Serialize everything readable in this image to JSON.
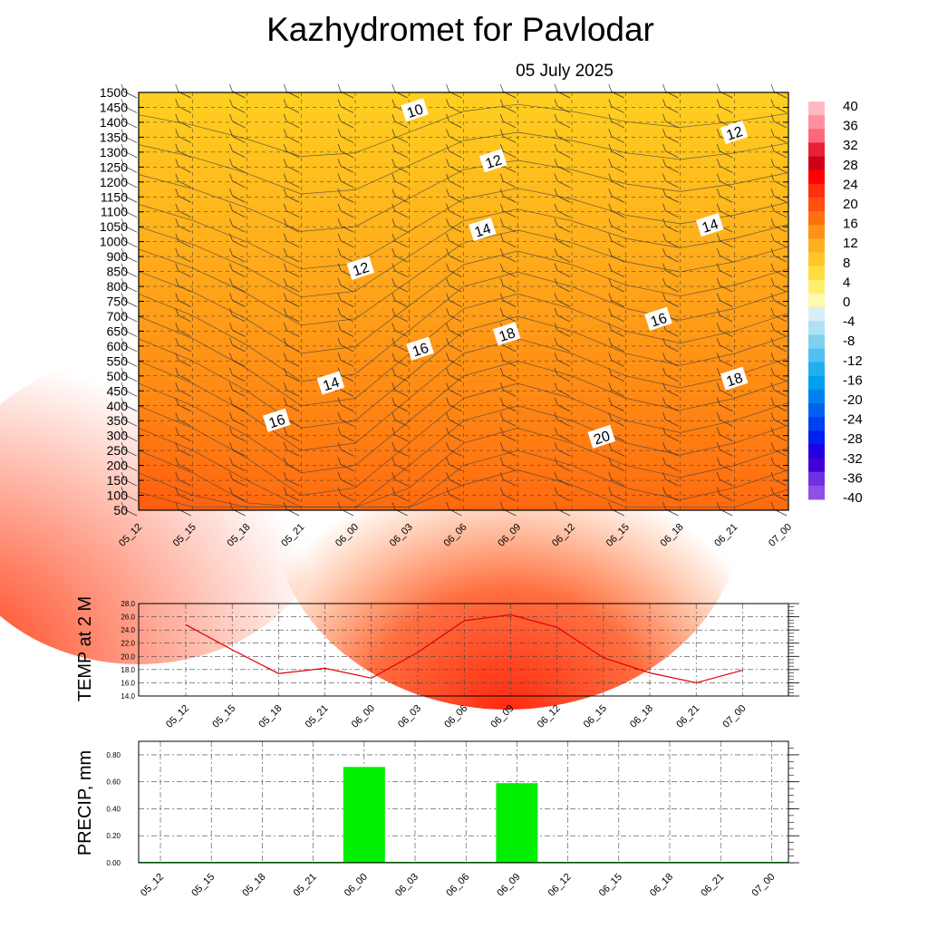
{
  "header": {
    "title": "Kazhydromet  for Pavlodar",
    "date": "05 July 2025"
  },
  "chart_data": [
    {
      "type": "heatmap",
      "name": "cross-section",
      "x_categories": [
        "05_12",
        "05_15",
        "05_18",
        "05_21",
        "06_00",
        "06_03",
        "06_06",
        "06_09",
        "06_12",
        "06_15",
        "06_18",
        "06_21",
        "07_00"
      ],
      "y_ticks": [
        50,
        100,
        150,
        200,
        250,
        300,
        350,
        400,
        450,
        500,
        550,
        600,
        650,
        700,
        750,
        800,
        850,
        900,
        1000,
        1050,
        1100,
        1150,
        1200,
        1250,
        1300,
        1350,
        1400,
        1450,
        1500
      ],
      "colorbar_ticks": [
        "40",
        "36",
        "32",
        "28",
        "24",
        "20",
        "16",
        "12",
        "8",
        "4",
        "0",
        "-4",
        "-8",
        "-12",
        "-16",
        "-20",
        "-24",
        "-28",
        "-32",
        "-36",
        "-40"
      ],
      "contour_labels": [
        {
          "text": "10",
          "x": 5.1,
          "y_idx": 26.8
        },
        {
          "text": "12",
          "x": 6.55,
          "y_idx": 23.4
        },
        {
          "text": "12",
          "x": 11.0,
          "y_idx": 25.3
        },
        {
          "text": "14",
          "x": 6.35,
          "y_idx": 18.8
        },
        {
          "text": "14",
          "x": 10.55,
          "y_idx": 19.1
        },
        {
          "text": "12",
          "x": 4.1,
          "y_idx": 16.2
        },
        {
          "text": "16",
          "x": 9.6,
          "y_idx": 12.8
        },
        {
          "text": "18",
          "x": 6.8,
          "y_idx": 11.8
        },
        {
          "text": "16",
          "x": 5.2,
          "y_idx": 10.8
        },
        {
          "text": "14",
          "x": 3.55,
          "y_idx": 8.5
        },
        {
          "text": "18",
          "x": 11.0,
          "y_idx": 8.8
        },
        {
          "text": "16",
          "x": 2.55,
          "y_idx": 6.0
        },
        {
          "text": "20",
          "x": 8.55,
          "y_idx": 4.9
        }
      ]
    },
    {
      "type": "line",
      "ylabel": "TEMP at 2 M",
      "categories": [
        "05_12",
        "05_15",
        "05_18",
        "05_21",
        "06_00",
        "06_03",
        "06_06",
        "06_09",
        "06_12",
        "06_15",
        "06_18",
        "06_21",
        "07_00"
      ],
      "values": [
        24.8,
        21.0,
        17.4,
        18.2,
        16.7,
        20.6,
        25.4,
        26.3,
        24.4,
        19.8,
        17.5,
        16.0,
        17.9
      ],
      "ylim": [
        14.0,
        28.0
      ],
      "y_ticks": [
        "14.0",
        "16.0",
        "18.0",
        "20.0",
        "22.0",
        "24.0",
        "26.0",
        "28.0"
      ],
      "color": "#e00000",
      "grid": true
    },
    {
      "type": "bar",
      "ylabel": "PRECIP, mm",
      "categories": [
        "05_12",
        "05_15",
        "05_18",
        "05_21",
        "06_00",
        "06_03",
        "06_06",
        "06_09",
        "06_12",
        "06_15",
        "06_18",
        "06_21",
        "07_00"
      ],
      "values": [
        0,
        0,
        0,
        0,
        0.71,
        0,
        0,
        0.59,
        0,
        0,
        0,
        0,
        0
      ],
      "ylim": [
        0,
        0.9
      ],
      "y_ticks": [
        "0.00",
        "0.20",
        "0.40",
        "0.60",
        "0.80"
      ],
      "color": "#00ee00",
      "grid": true
    }
  ]
}
